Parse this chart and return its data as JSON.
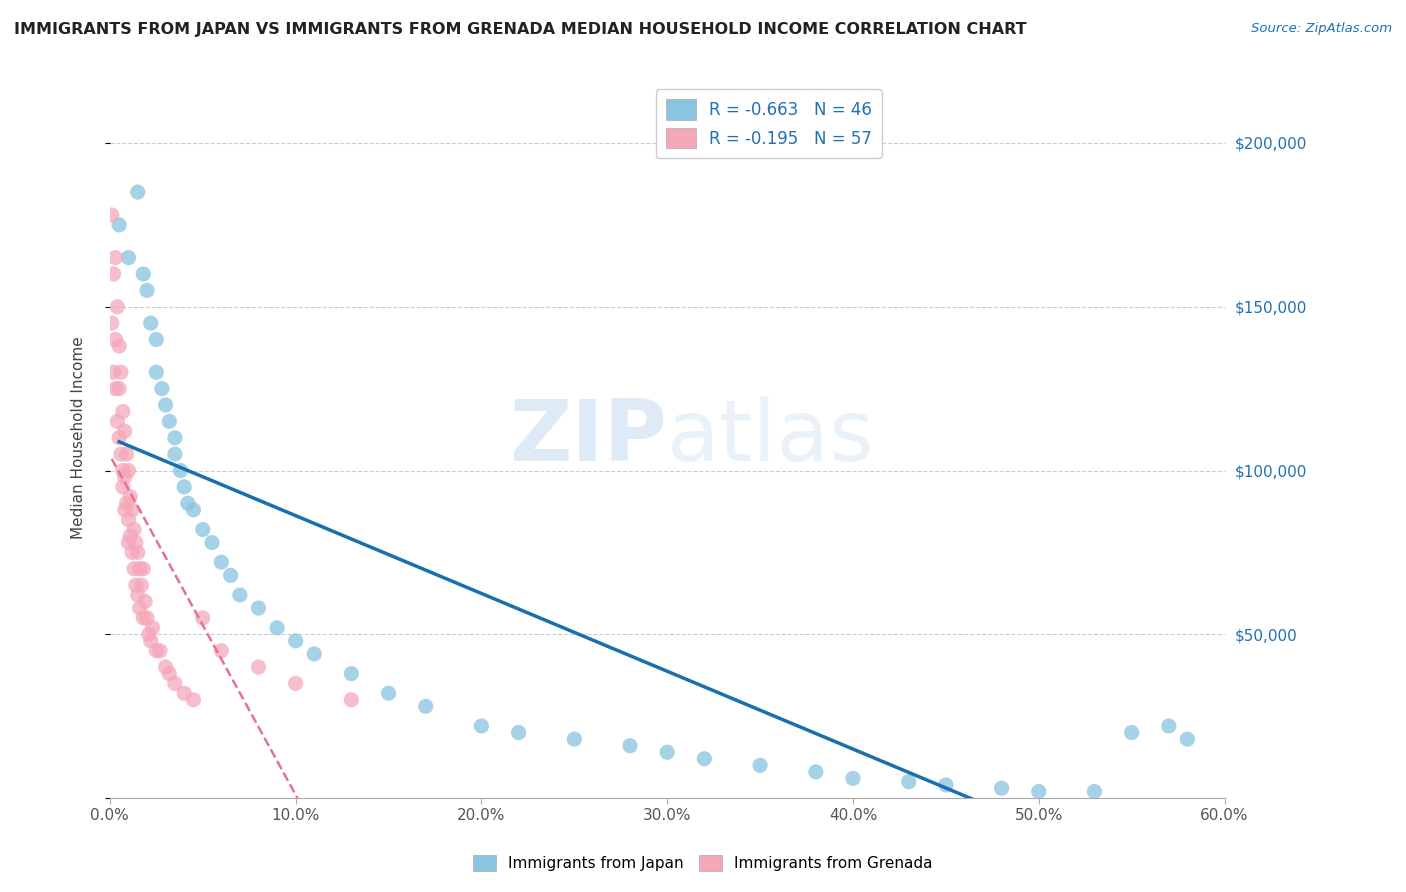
{
  "title": "IMMIGRANTS FROM JAPAN VS IMMIGRANTS FROM GRENADA MEDIAN HOUSEHOLD INCOME CORRELATION CHART",
  "source_text": "Source: ZipAtlas.com",
  "ylabel": "Median Household Income",
  "xlim": [
    0.0,
    0.6
  ],
  "ylim": [
    0,
    220000
  ],
  "xtick_labels": [
    "0.0%",
    "10.0%",
    "20.0%",
    "30.0%",
    "40.0%",
    "50.0%",
    "60.0%"
  ],
  "xtick_vals": [
    0.0,
    0.1,
    0.2,
    0.3,
    0.4,
    0.5,
    0.6
  ],
  "ytick_vals": [
    0,
    50000,
    100000,
    150000,
    200000
  ],
  "right_ytick_labels": [
    "$200,000",
    "$150,000",
    "$100,000",
    "$50,000"
  ],
  "right_ytick_vals": [
    200000,
    150000,
    100000,
    50000
  ],
  "japan_color": "#89c4e1",
  "grenada_color": "#f4a7b9",
  "japan_line_color": "#1a6faf",
  "grenada_line_color": "#e87090",
  "background_color": "#ffffff",
  "watermark_text": "ZIPatlas",
  "japan_scatter_x": [
    0.005,
    0.01,
    0.015,
    0.018,
    0.02,
    0.022,
    0.025,
    0.025,
    0.028,
    0.03,
    0.032,
    0.035,
    0.035,
    0.038,
    0.04,
    0.042,
    0.045,
    0.05,
    0.055,
    0.06,
    0.065,
    0.07,
    0.08,
    0.09,
    0.1,
    0.11,
    0.13,
    0.15,
    0.17,
    0.2,
    0.22,
    0.25,
    0.28,
    0.3,
    0.32,
    0.35,
    0.38,
    0.4,
    0.43,
    0.45,
    0.48,
    0.5,
    0.53,
    0.55,
    0.57,
    0.58
  ],
  "japan_scatter_y": [
    175000,
    165000,
    185000,
    160000,
    155000,
    145000,
    140000,
    130000,
    125000,
    120000,
    115000,
    110000,
    105000,
    100000,
    95000,
    90000,
    88000,
    82000,
    78000,
    72000,
    68000,
    62000,
    58000,
    52000,
    48000,
    44000,
    38000,
    32000,
    28000,
    22000,
    20000,
    18000,
    16000,
    14000,
    12000,
    10000,
    8000,
    6000,
    5000,
    4000,
    3000,
    2000,
    2000,
    20000,
    22000,
    18000
  ],
  "grenada_scatter_x": [
    0.001,
    0.001,
    0.002,
    0.002,
    0.003,
    0.003,
    0.003,
    0.004,
    0.004,
    0.005,
    0.005,
    0.005,
    0.006,
    0.006,
    0.007,
    0.007,
    0.007,
    0.008,
    0.008,
    0.008,
    0.009,
    0.009,
    0.01,
    0.01,
    0.01,
    0.011,
    0.011,
    0.012,
    0.012,
    0.013,
    0.013,
    0.014,
    0.014,
    0.015,
    0.015,
    0.016,
    0.016,
    0.017,
    0.018,
    0.018,
    0.019,
    0.02,
    0.021,
    0.022,
    0.023,
    0.025,
    0.027,
    0.03,
    0.032,
    0.035,
    0.04,
    0.045,
    0.05,
    0.06,
    0.08,
    0.1,
    0.13
  ],
  "grenada_scatter_y": [
    178000,
    145000,
    160000,
    130000,
    165000,
    140000,
    125000,
    150000,
    115000,
    138000,
    125000,
    110000,
    130000,
    105000,
    118000,
    100000,
    95000,
    112000,
    98000,
    88000,
    105000,
    90000,
    100000,
    85000,
    78000,
    92000,
    80000,
    88000,
    75000,
    82000,
    70000,
    78000,
    65000,
    75000,
    62000,
    70000,
    58000,
    65000,
    70000,
    55000,
    60000,
    55000,
    50000,
    48000,
    52000,
    45000,
    45000,
    40000,
    38000,
    35000,
    32000,
    30000,
    55000,
    45000,
    40000,
    35000,
    30000
  ]
}
